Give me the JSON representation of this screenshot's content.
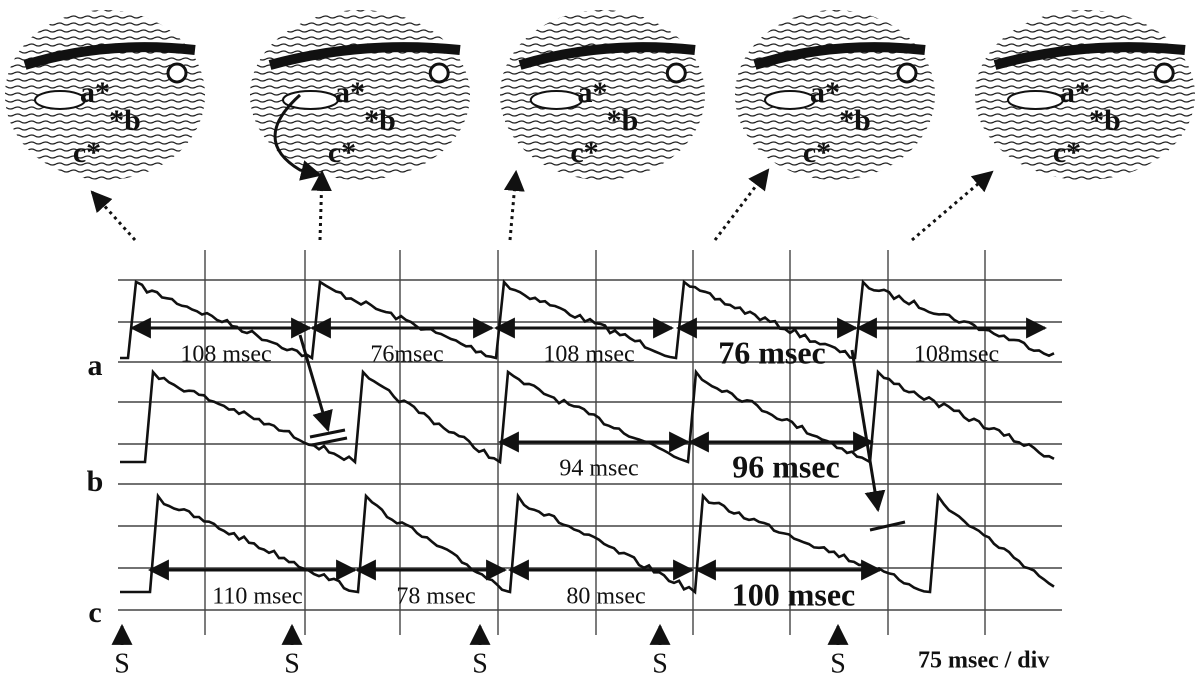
{
  "maps": [
    {
      "labels": [
        "a*",
        "*b",
        "c*"
      ]
    },
    {
      "labels": [
        "a*",
        "*b",
        "c*"
      ]
    },
    {
      "labels": [
        "a*",
        "*b",
        "c*"
      ]
    },
    {
      "labels": [
        "a*",
        "*b",
        "c*"
      ]
    },
    {
      "labels": [
        "a*",
        "*b",
        "c*"
      ]
    }
  ],
  "traces": [
    {
      "label": "a",
      "intervals": [
        "108 msec",
        "76msec",
        "108 msec",
        "76 msec",
        "108msec"
      ]
    },
    {
      "label": "b",
      "intervals": [
        "94 msec",
        "96 msec"
      ]
    },
    {
      "label": "c",
      "intervals": [
        "110 msec",
        "78 msec",
        "80 msec",
        "100 msec"
      ]
    }
  ],
  "stimuli": [
    "S",
    "S",
    "S",
    "S",
    "S"
  ],
  "scale": "75 msec / div"
}
